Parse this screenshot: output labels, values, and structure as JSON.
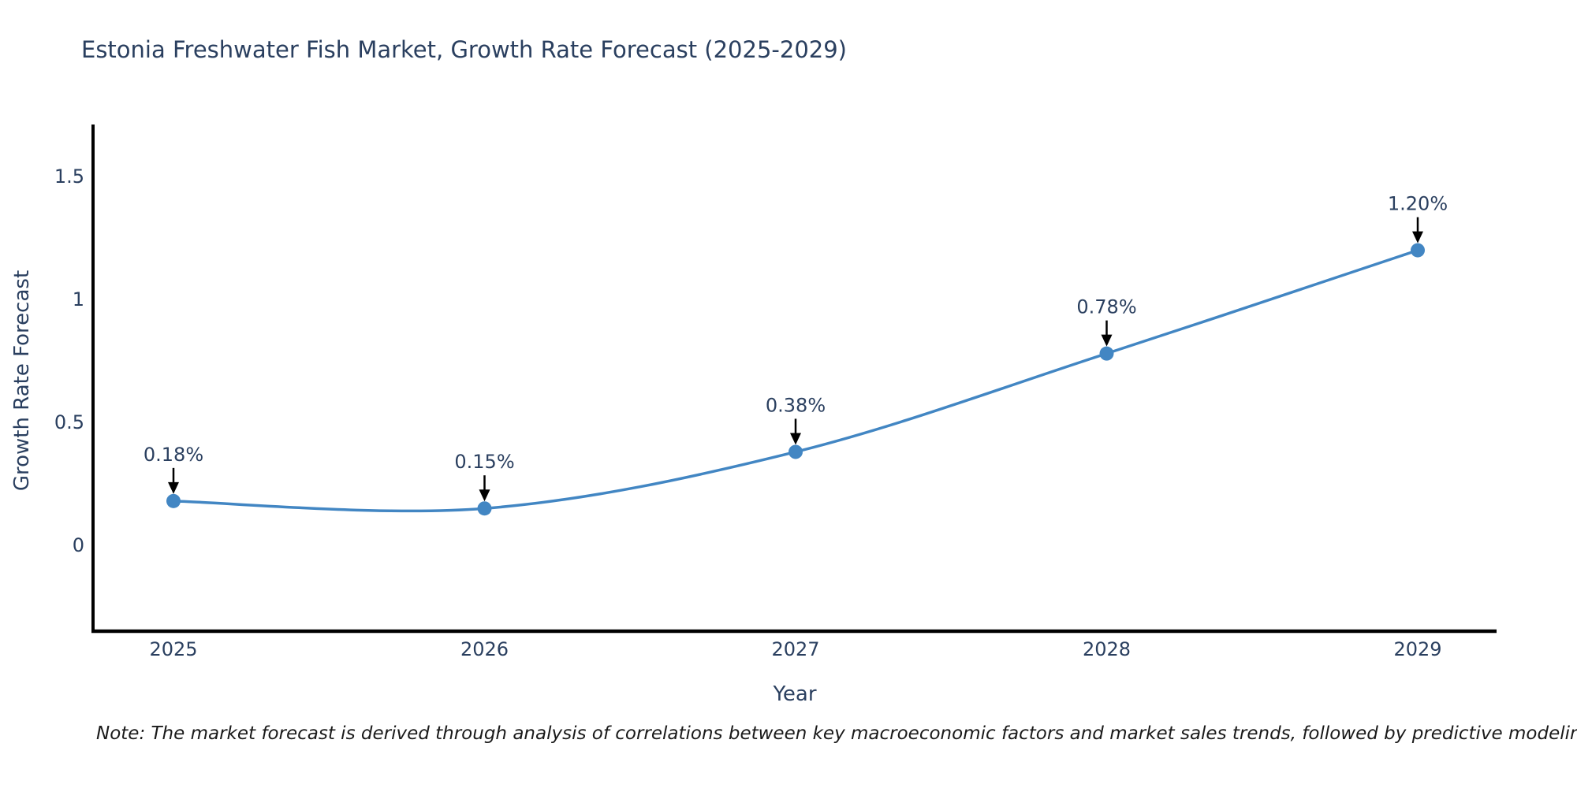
{
  "title": "Estonia Freshwater Fish Market, Growth Rate Forecast (2025-2029)",
  "note": "Note: The market forecast is derived through analysis of correlations between key macroeconomic factors and market sales trends, followed by predictive modeling to project future sales",
  "chart_data": {
    "type": "line",
    "title": "Estonia Freshwater Fish Market, Growth Rate Forecast (2025-2029)",
    "xlabel": "Year",
    "ylabel": "Growth Rate Forecast",
    "categories": [
      "2025",
      "2026",
      "2027",
      "2028",
      "2029"
    ],
    "series": [
      {
        "name": "Growth Rate Forecast",
        "values": [
          0.18,
          0.15,
          0.38,
          0.78,
          1.2
        ],
        "data_labels": [
          "0.18%",
          "0.15%",
          "0.38%",
          "0.78%",
          "1.20%"
        ]
      }
    ],
    "line_shape": "spline",
    "markers": true,
    "grid": false,
    "legend_position": "none",
    "ylim": [
      -0.35,
      1.72
    ],
    "yticks": [
      0,
      0.5,
      1,
      1.5
    ],
    "ytick_labels": [
      "0",
      "0.5",
      "1",
      "1.5"
    ],
    "annotation_style": "value label above point with black down-arrow",
    "colors": {
      "line": "#4286c3",
      "marker": "#4286c3",
      "axis_line": "#000000",
      "arrow": "#000000",
      "text": "#2a3f5f",
      "note_text": "#1a1a1a",
      "background": "#ffffff"
    }
  }
}
